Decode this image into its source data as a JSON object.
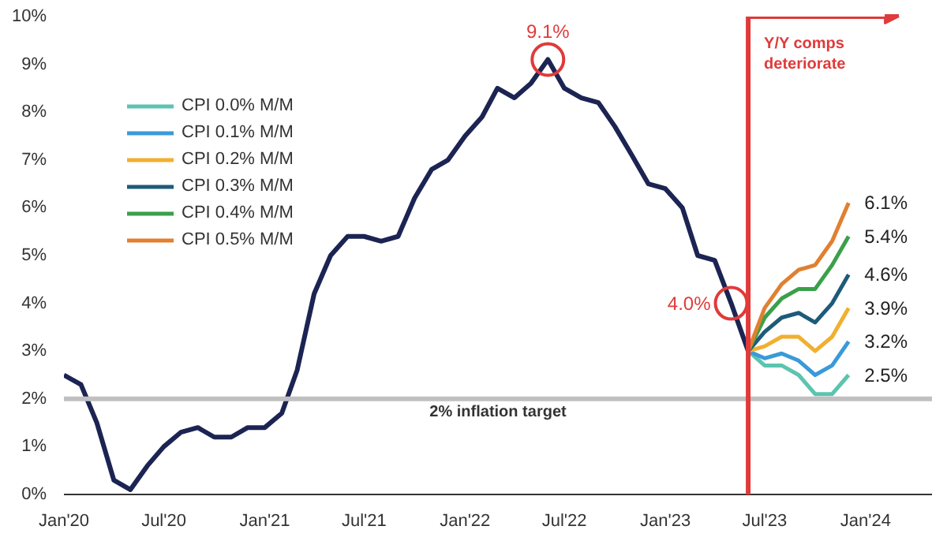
{
  "chart_data": {
    "type": "line",
    "x": [
      "2020-01",
      "2020-02",
      "2020-03",
      "2020-04",
      "2020-05",
      "2020-06",
      "2020-07",
      "2020-08",
      "2020-09",
      "2020-10",
      "2020-11",
      "2020-12",
      "2021-01",
      "2021-02",
      "2021-03",
      "2021-04",
      "2021-05",
      "2021-06",
      "2021-07",
      "2021-08",
      "2021-09",
      "2021-10",
      "2021-11",
      "2021-12",
      "2022-01",
      "2022-02",
      "2022-03",
      "2022-04",
      "2022-05",
      "2022-06",
      "2022-07",
      "2022-08",
      "2022-09",
      "2022-10",
      "2022-11",
      "2022-12",
      "2023-01",
      "2023-02",
      "2023-03",
      "2023-04",
      "2023-05",
      "2023-06"
    ],
    "series": [
      {
        "color": "#1b2452",
        "values": [
          2.5,
          2.3,
          1.5,
          0.3,
          0.1,
          0.6,
          1.0,
          1.3,
          1.4,
          1.2,
          1.2,
          1.4,
          1.4,
          1.7,
          2.6,
          4.2,
          5.0,
          5.4,
          5.4,
          5.3,
          5.4,
          6.2,
          6.8,
          7.0,
          7.5,
          7.9,
          8.5,
          8.3,
          8.6,
          9.1,
          8.5,
          8.3,
          8.2,
          7.7,
          7.1,
          6.5,
          6.4,
          6.0,
          5.0,
          4.9,
          4.0,
          3.0
        ]
      },
      {
        "name": "CPI 0.0% M/M",
        "color": "#5cc4b0",
        "x": [
          "2023-06",
          "2023-07",
          "2023-08",
          "2023-09",
          "2023-10",
          "2023-11",
          "2023-12"
        ],
        "values": [
          3.0,
          2.7,
          2.7,
          2.5,
          2.1,
          2.1,
          2.5
        ],
        "value_labels": [
          null,
          null,
          null,
          null,
          null,
          null,
          "2.5%"
        ]
      },
      {
        "name": "CPI 0.1% M/M",
        "color": "#3a9ad9",
        "x": [
          "2023-06",
          "2023-07",
          "2023-08",
          "2023-09",
          "2023-10",
          "2023-11",
          "2023-12"
        ],
        "values": [
          3.0,
          2.85,
          2.95,
          2.8,
          2.5,
          2.7,
          3.2
        ],
        "value_labels": [
          null,
          null,
          null,
          null,
          null,
          null,
          "3.2%"
        ]
      },
      {
        "name": "CPI 0.2% M/M",
        "color": "#f0b030",
        "x": [
          "2023-06",
          "2023-07",
          "2023-08",
          "2023-09",
          "2023-10",
          "2023-11",
          "2023-12"
        ],
        "values": [
          3.0,
          3.1,
          3.3,
          3.3,
          3.0,
          3.3,
          3.9
        ],
        "value_labels": [
          null,
          null,
          null,
          null,
          null,
          null,
          "3.9%"
        ]
      },
      {
        "name": "CPI 0.3% M/M",
        "color": "#1e5a7a",
        "x": [
          "2023-06",
          "2023-07",
          "2023-08",
          "2023-09",
          "2023-10",
          "2023-11",
          "2023-12"
        ],
        "values": [
          3.0,
          3.4,
          3.7,
          3.8,
          3.6,
          4.0,
          4.6
        ],
        "value_labels": [
          null,
          null,
          null,
          null,
          null,
          null,
          "4.6%"
        ]
      },
      {
        "name": "CPI 0.4% M/M",
        "color": "#3aa04a",
        "x": [
          "2023-06",
          "2023-07",
          "2023-08",
          "2023-09",
          "2023-10",
          "2023-11",
          "2023-12"
        ],
        "values": [
          3.0,
          3.7,
          4.1,
          4.3,
          4.3,
          4.8,
          5.4
        ],
        "value_labels": [
          null,
          null,
          null,
          null,
          null,
          null,
          "5.4%"
        ]
      },
      {
        "name": "CPI 0.5% M/M",
        "color": "#e08030",
        "x": [
          "2023-06",
          "2023-07",
          "2023-08",
          "2023-09",
          "2023-10",
          "2023-11",
          "2023-12"
        ],
        "values": [
          3.0,
          3.9,
          4.4,
          4.7,
          4.8,
          5.3,
          6.1
        ],
        "value_labels": [
          null,
          null,
          null,
          null,
          null,
          null,
          "6.1%"
        ]
      }
    ],
    "xlim": [
      "2020-01",
      "2024-05"
    ],
    "xticks": [
      {
        "value": "2020-01",
        "label": "Jan'20"
      },
      {
        "value": "2020-07",
        "label": "Jul'20"
      },
      {
        "value": "2021-01",
        "label": "Jan'21"
      },
      {
        "value": "2021-07",
        "label": "Jul'21"
      },
      {
        "value": "2022-01",
        "label": "Jan'22"
      },
      {
        "value": "2022-07",
        "label": "Jul'22"
      },
      {
        "value": "2023-01",
        "label": "Jan'23"
      },
      {
        "value": "2023-07",
        "label": "Jul'23"
      },
      {
        "value": "2024-01",
        "label": "Jan'24"
      }
    ],
    "ylim": [
      0,
      10
    ],
    "yticks": [
      {
        "value": 0,
        "label": "0%"
      },
      {
        "value": 1,
        "label": "1%"
      },
      {
        "value": 2,
        "label": "2%"
      },
      {
        "value": 3,
        "label": "3%"
      },
      {
        "value": 4,
        "label": "4%"
      },
      {
        "value": 5,
        "label": "5%"
      },
      {
        "value": 6,
        "label": "6%"
      },
      {
        "value": 7,
        "label": "7%"
      },
      {
        "value": 8,
        "label": "8%"
      },
      {
        "value": 9,
        "label": "9%"
      },
      {
        "value": 10,
        "label": "10%"
      }
    ],
    "annotations": [
      {
        "text": "9.1%",
        "x": "2022-06",
        "y": 9.1
      },
      {
        "text": "4.0%",
        "x": "2023-05",
        "y": 4.0
      }
    ],
    "ref_lines": [
      {
        "axis": "y",
        "value": 2,
        "label": "2% inflation target",
        "color": "#c0c0c0"
      },
      {
        "axis": "x",
        "value": "2023-06",
        "label": "Y/Y comps deteriorate",
        "color": "#e03a3a"
      }
    ],
    "grid": false,
    "legend": "top left",
    "line_style": "solid",
    "marker": "none"
  }
}
